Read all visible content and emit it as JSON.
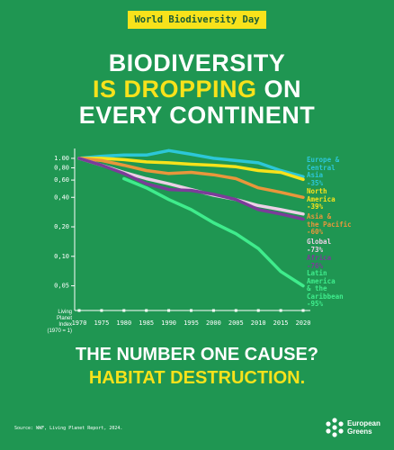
{
  "badge": "World Biodiversity Day",
  "headline": [
    [
      {
        "text": "BIODIVERSITY",
        "color": "#ffffff"
      }
    ],
    [
      {
        "text": "IS DROPPING",
        "color": "#f7e21b"
      },
      {
        "text": " ON",
        "color": "#ffffff"
      }
    ],
    [
      {
        "text": "EVERY CONTINENT",
        "color": "#ffffff"
      }
    ]
  ],
  "footer": [
    {
      "text": "THE NUMBER ONE CAUSE?",
      "color": "#ffffff"
    },
    {
      "text": "HABITAT DESTRUCTION.",
      "color": "#f7e21b"
    }
  ],
  "source": "Source: WWF, Living Planet Report, 2024.",
  "logo": "European\nGreens",
  "chart_data": {
    "type": "line",
    "ylabel": "Living\nPlanet\nIndex\n(1970 = 1)",
    "log_scale": true,
    "x": [
      1970,
      1975,
      1980,
      1985,
      1990,
      1995,
      2000,
      2005,
      2010,
      2015,
      2020
    ],
    "xlim": [
      1970,
      2020
    ],
    "xticks": [
      1970,
      1975,
      1980,
      1985,
      1990,
      1995,
      2000,
      2005,
      2010,
      2015,
      2020
    ],
    "ylim": [
      0.028,
      1.26
    ],
    "yticks": [
      {
        "value": 1.0,
        "label": "1.00"
      },
      {
        "value": 0.8,
        "label": "0,80"
      },
      {
        "value": 0.6,
        "label": "0,60"
      },
      {
        "value": 0.4,
        "label": "0,40"
      },
      {
        "value": 0.2,
        "label": "0,20"
      },
      {
        "value": 0.1,
        "label": "0,10"
      },
      {
        "value": 0.05,
        "label": "0,05"
      }
    ],
    "series": [
      {
        "name": "Europe &\nCentral\nAsia",
        "label": "-35%",
        "color": "#2cc7d8",
        "values": [
          1.0,
          1.05,
          1.08,
          1.08,
          1.2,
          1.1,
          1.0,
          0.95,
          0.9,
          0.75,
          0.65
        ]
      },
      {
        "name": "North\nAmerica",
        "label": "-39%",
        "color": "#f7e21b",
        "values": [
          1.0,
          1.0,
          0.97,
          0.92,
          0.9,
          0.87,
          0.85,
          0.82,
          0.75,
          0.72,
          0.61
        ]
      },
      {
        "name": "Asia &\nthe Pacific",
        "label": "-60%",
        "color": "#e9963b",
        "values": [
          1.0,
          0.95,
          0.85,
          0.75,
          0.7,
          0.72,
          0.68,
          0.62,
          0.5,
          0.45,
          0.4
        ]
      },
      {
        "name": "Global",
        "label": "-73%",
        "color": "#ecd0e6",
        "values": [
          1.0,
          0.85,
          0.72,
          0.62,
          0.55,
          0.48,
          0.42,
          0.38,
          0.33,
          0.3,
          0.27
        ]
      },
      {
        "name": "Africa",
        "label": "-76%",
        "color": "#7b3c99",
        "values": [
          1.0,
          0.85,
          0.7,
          0.55,
          0.48,
          0.47,
          0.43,
          0.38,
          0.3,
          0.27,
          0.24
        ]
      },
      {
        "name": "Latin\nAmerica\n& the\nCaribbean",
        "label": "-95%",
        "color": "#3fec8c",
        "values": [
          null,
          null,
          0.62,
          0.5,
          0.38,
          0.3,
          0.22,
          0.17,
          0.12,
          0.07,
          0.05
        ]
      }
    ]
  }
}
